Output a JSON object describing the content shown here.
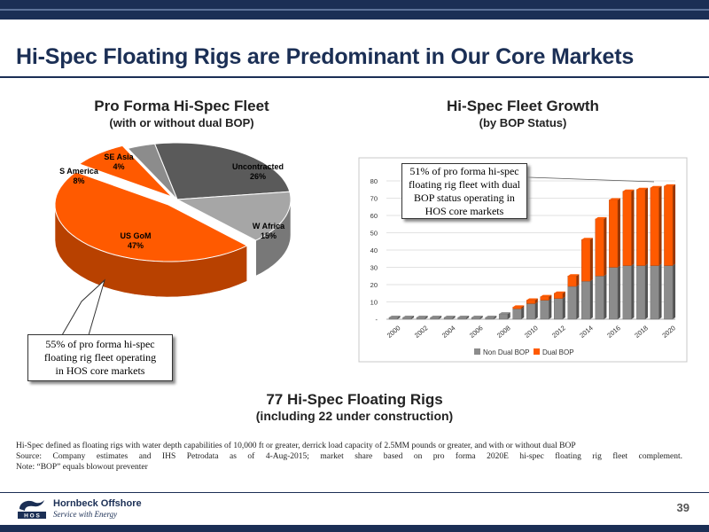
{
  "slide": {
    "title": "Hi-Spec Floating Rigs are Predominant in Our Core Markets",
    "page_number": "39",
    "colors": {
      "navy": "#1b2f55",
      "dual_bop": "#ff5a00",
      "non_dual_bop": "#8c8c8c"
    }
  },
  "left_panel": {
    "heading": "Pro Forma Hi-Spec Fleet",
    "subheading": "(with or without dual BOP)",
    "callout": [
      "55% of pro forma hi-spec",
      "floating rig fleet operating",
      "in HOS core markets"
    ]
  },
  "right_panel": {
    "heading": "Hi-Spec Fleet Growth",
    "subheading": "(by BOP Status)",
    "callout": [
      "51% of pro forma hi-spec",
      "floating rig fleet with dual",
      "BOP status operating in",
      "HOS core markets"
    ]
  },
  "summary": {
    "line1": "77 Hi-Spec Floating Rigs",
    "line2": "(including 22 under construction)"
  },
  "notes": [
    "Hi-Spec defined as floating rigs with water depth capabilities of 10,000 ft or greater, derrick load capacity of 2.5MM pounds or greater, and with or without dual BOP",
    "Source: Company estimates and IHS Petrodata as of 4-Aug-2015; market share based on pro forma 2020E hi-spec floating rig fleet complement.",
    "Note: “BOP” equals blowout preventer"
  ],
  "logo": {
    "letters": "H O S",
    "name": "Hornbeck Offshore",
    "tagline": "Service with Energy"
  },
  "chart_data": [
    {
      "type": "pie",
      "title": "Pro Forma Hi-Spec Fleet",
      "subtitle": "(with or without dual BOP)",
      "slices": [
        {
          "label": "Uncontracted",
          "value": 26,
          "value_label": "26%",
          "color": "#5a5a5a"
        },
        {
          "label": "W Africa",
          "value": 15,
          "value_label": "15%",
          "color": "#a6a6a6"
        },
        {
          "label": "US GoM",
          "value": 47,
          "value_label": "47%",
          "color": "#ff5a00"
        },
        {
          "label": "S America",
          "value": 8,
          "value_label": "8%",
          "color": "#ff5a00"
        },
        {
          "label": "SE Asia",
          "value": 4,
          "value_label": "4%",
          "color": "#8c8c8c"
        }
      ]
    },
    {
      "type": "bar",
      "stacked": true,
      "title": "Hi-Spec Fleet Growth",
      "subtitle": "(by BOP Status)",
      "categories": [
        "2000",
        "2001",
        "2002",
        "2003",
        "2004",
        "2005",
        "2006",
        "2007",
        "2008",
        "2009",
        "2010",
        "2011",
        "2012",
        "2013",
        "2014",
        "2015",
        "2016",
        "2017",
        "2018",
        "2019",
        "2020"
      ],
      "x_tick_labels": [
        "2000",
        "2002",
        "2004",
        "2006",
        "2008",
        "2010",
        "2012",
        "2014",
        "2016",
        "2018",
        "2020"
      ],
      "y_tick_labels": [
        "-",
        "10",
        "20",
        "30",
        "40",
        "50",
        "60",
        "70",
        "80"
      ],
      "ylim": [
        0,
        80
      ],
      "series": [
        {
          "name": "Non Dual BOP",
          "color": "#8c8c8c",
          "values": [
            1,
            1,
            1,
            1,
            1,
            1,
            1,
            1,
            3,
            6,
            9,
            11,
            12,
            19,
            22,
            25,
            30,
            31,
            31,
            31,
            31
          ]
        },
        {
          "name": "Dual BOP",
          "color": "#ff5a00",
          "values": [
            0,
            0,
            0,
            0,
            0,
            0,
            0,
            0,
            0,
            1,
            2,
            2,
            3,
            6,
            24,
            33,
            39,
            43,
            44,
            45,
            46
          ]
        }
      ],
      "legend_position": "bottom",
      "grid": true
    }
  ]
}
